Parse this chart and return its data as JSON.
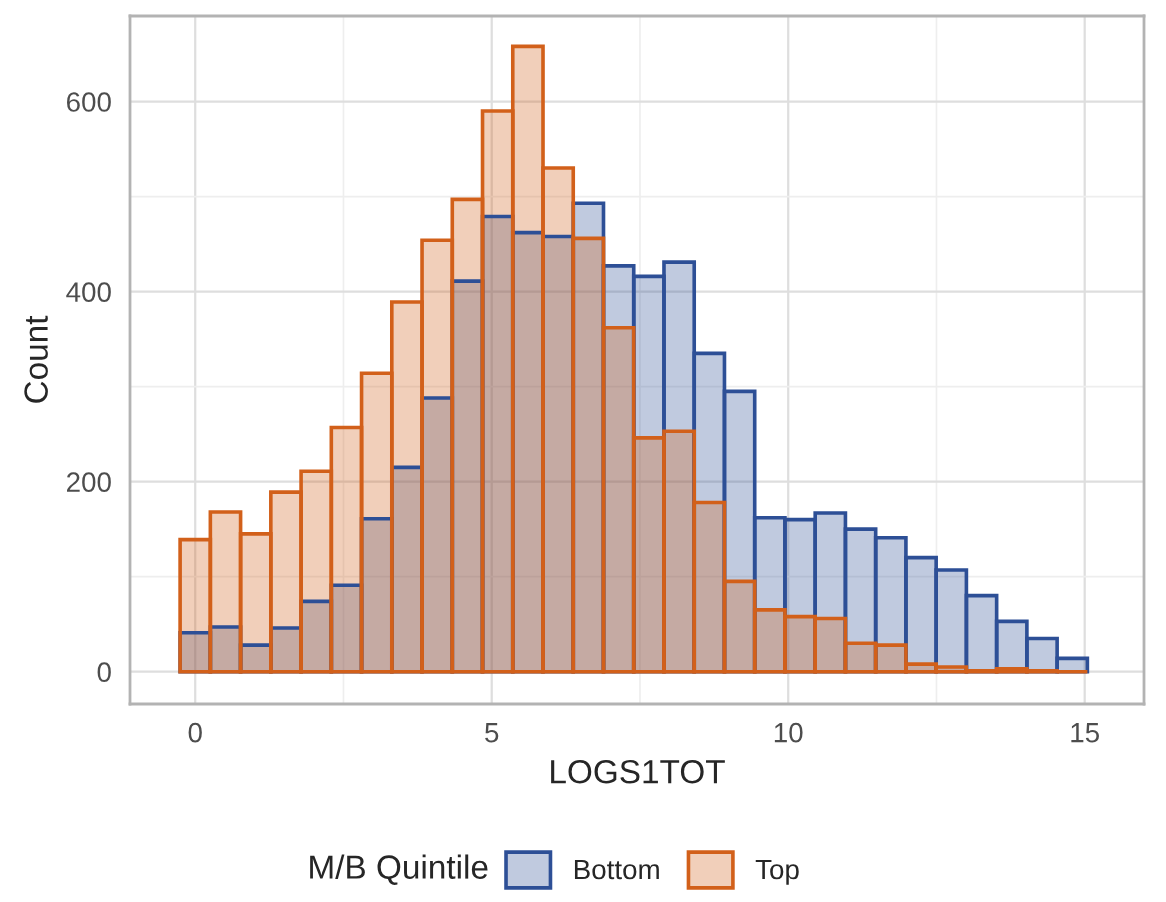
{
  "chart_data": {
    "type": "histogram",
    "xlabel": "LOGS1TOT",
    "ylabel": "Count",
    "legend_title": "M/B Quintile",
    "legend": "bottom",
    "grid": true,
    "bins": [
      -0.255,
      0.255,
      0.765,
      1.275,
      1.785,
      2.295,
      2.805,
      3.315,
      3.825,
      4.335,
      4.845,
      5.355,
      5.865,
      6.375,
      6.885,
      7.395,
      7.905,
      8.415,
      8.925,
      9.435,
      9.945,
      10.455,
      10.965,
      11.475,
      11.985,
      12.495,
      13.005,
      13.515,
      14.025,
      14.535,
      15.045
    ],
    "series": [
      {
        "name": "Bottom",
        "color": "#2d4f96",
        "values": [
          41,
          47,
          28,
          46,
          74,
          91,
          161,
          215,
          288,
          411,
          479,
          462,
          458,
          493,
          427,
          416,
          431,
          335,
          295,
          162,
          160,
          167,
          150,
          141,
          120,
          107,
          80,
          53,
          35,
          14
        ]
      },
      {
        "name": "Top",
        "color": "#d2601a",
        "values": [
          139,
          168,
          145,
          189,
          211,
          257,
          314,
          389,
          454,
          497,
          590,
          658,
          530,
          456,
          362,
          246,
          253,
          178,
          95,
          65,
          58,
          56,
          30,
          28,
          8,
          5,
          1,
          3,
          1,
          0
        ]
      }
    ],
    "xlim": [
      -1.1,
      16.0
    ],
    "xticks": [
      0,
      5,
      10,
      15
    ],
    "ylim": [
      -34,
      690
    ],
    "yticks": [
      0,
      200,
      400,
      600
    ]
  }
}
